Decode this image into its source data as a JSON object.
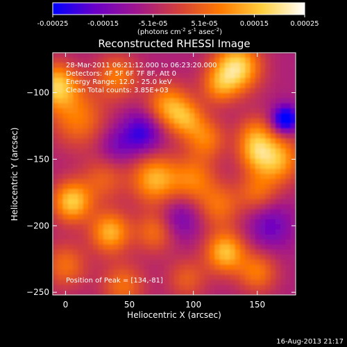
{
  "colorbar": {
    "tick_labels": [
      "-0.00025",
      "-0.00015",
      "-5.1e-05",
      "5.1e-05",
      "0.00015",
      "0.00025"
    ],
    "tick_values": [
      -0.00025,
      -0.00015,
      -5.1e-05,
      5.1e-05,
      0.00015,
      0.00025
    ],
    "range": [
      -0.00025,
      0.00025
    ],
    "units_main": "(photons cm",
    "units_sup1": "-2",
    "units_mid": " s",
    "units_sup2": "-1",
    "units_end": " asec",
    "units_sup3": "-2",
    "units_close": ")",
    "colormap": [
      "#0000ff",
      "#6a00c8",
      "#a0168e",
      "#d4403a",
      "#ff7a00",
      "#ffd040",
      "#ffffff"
    ]
  },
  "chart_data": {
    "type": "heatmap",
    "title": "Reconstructed RHESSI Image",
    "xlabel": "Heliocentric X (arcsec)",
    "ylabel": "Heliocentric Y (arcsec)",
    "xlim": [
      -10,
      180
    ],
    "ylim": [
      -252,
      -70
    ],
    "x_ticks": [
      0,
      50,
      100,
      150
    ],
    "x_tick_labels": [
      "0",
      "50",
      "100",
      "150"
    ],
    "y_ticks": [
      -100,
      -150,
      -200,
      -250
    ],
    "y_tick_labels": [
      "−100",
      "−150",
      "−200",
      "−250"
    ],
    "annotations": {
      "time": "28-Mar-2011 06:21:12.000 to 06:23:20.000",
      "detectors": "Detectors: 4F 5F 6F 7F 8F, Att 0",
      "energy": "Energy Range: 12.0 - 25.0 keV",
      "clean": "Clean    Total counts: 3.85E+03",
      "peak": "Position of Peak = [134,-81]"
    },
    "peak": [
      134,
      -81
    ],
    "sources": [
      {
        "x": -7,
        "y": -95,
        "amp": 0.9,
        "s": 12
      },
      {
        "x": 10,
        "y": -120,
        "amp": 0.55,
        "s": 15
      },
      {
        "x": 40,
        "y": -88,
        "amp": 0.55,
        "s": 12
      },
      {
        "x": 80,
        "y": -110,
        "amp": 0.7,
        "s": 12
      },
      {
        "x": 95,
        "y": -120,
        "amp": 0.55,
        "s": 10
      },
      {
        "x": 120,
        "y": -95,
        "amp": 0.5,
        "s": 10
      },
      {
        "x": 134,
        "y": -81,
        "amp": 1.0,
        "s": 13
      },
      {
        "x": 110,
        "y": -135,
        "amp": 0.55,
        "s": 11
      },
      {
        "x": 148,
        "y": -130,
        "amp": 0.45,
        "s": 10
      },
      {
        "x": 165,
        "y": -150,
        "amp": 0.8,
        "s": 13
      },
      {
        "x": 148,
        "y": -145,
        "amp": 0.5,
        "s": 10
      },
      {
        "x": 5,
        "y": -182,
        "amp": 0.9,
        "s": 11
      },
      {
        "x": 30,
        "y": -165,
        "amp": 0.4,
        "s": 12
      },
      {
        "x": 70,
        "y": -165,
        "amp": 0.8,
        "s": 13
      },
      {
        "x": 100,
        "y": -165,
        "amp": 0.55,
        "s": 12
      },
      {
        "x": 120,
        "y": -185,
        "amp": 0.5,
        "s": 12
      },
      {
        "x": 150,
        "y": -175,
        "amp": 0.45,
        "s": 11
      },
      {
        "x": 35,
        "y": -205,
        "amp": 0.8,
        "s": 11
      },
      {
        "x": 70,
        "y": -205,
        "amp": 0.5,
        "s": 11
      },
      {
        "x": 0,
        "y": -230,
        "amp": 0.5,
        "s": 12
      },
      {
        "x": 45,
        "y": -245,
        "amp": 0.5,
        "s": 12
      },
      {
        "x": 125,
        "y": -220,
        "amp": 0.85,
        "s": 11
      },
      {
        "x": 150,
        "y": -235,
        "amp": 0.55,
        "s": 11
      },
      {
        "x": 95,
        "y": -240,
        "amp": 0.4,
        "s": 11
      },
      {
        "x": 172,
        "y": -120,
        "amp": -1.0,
        "s": 7
      },
      {
        "x": 60,
        "y": -130,
        "amp": -0.6,
        "s": 11
      },
      {
        "x": 160,
        "y": -200,
        "amp": -0.4,
        "s": 12
      },
      {
        "x": 40,
        "y": -140,
        "amp": -0.3,
        "s": 10
      },
      {
        "x": 90,
        "y": -195,
        "amp": -0.35,
        "s": 11
      }
    ],
    "background": -0.25
  },
  "footer": {
    "date": "16-Aug-2013 21:17"
  }
}
